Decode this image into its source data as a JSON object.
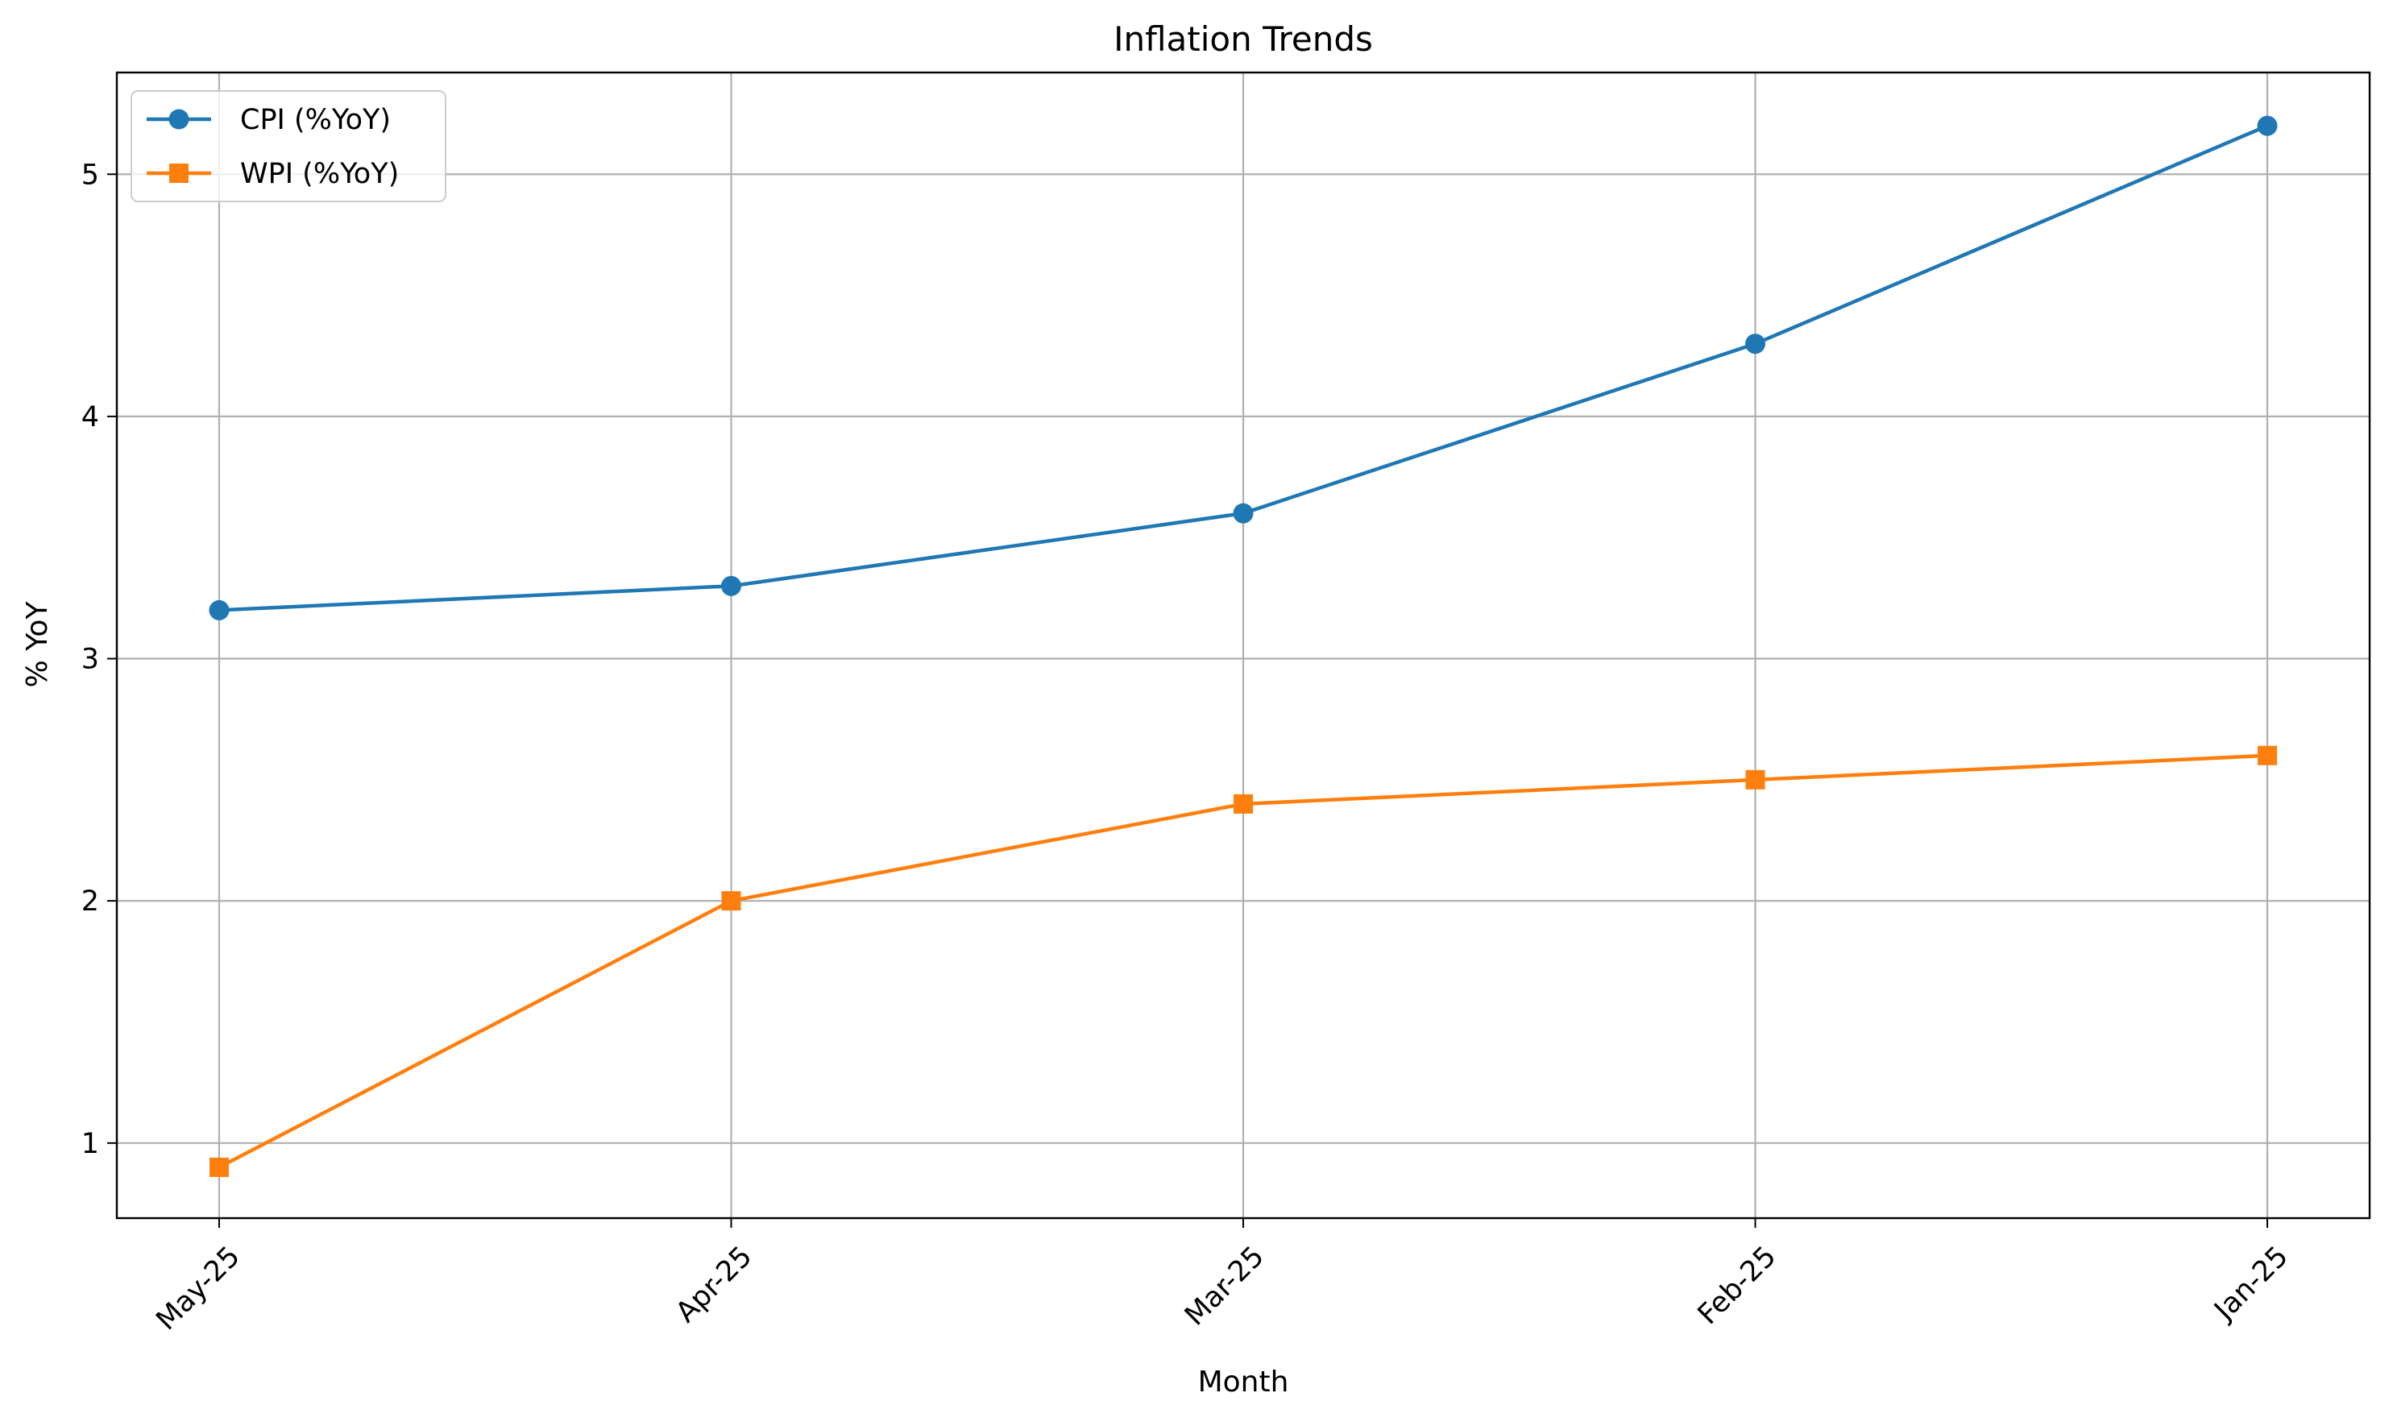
{
  "chart_data": {
    "type": "line",
    "title": "Inflation Trends",
    "xlabel": "Month",
    "ylabel": "% YoY",
    "categories": [
      "May-25",
      "Apr-25",
      "Mar-25",
      "Feb-25",
      "Jan-25"
    ],
    "series": [
      {
        "name": "CPI (%YoY)",
        "values": [
          3.2,
          3.3,
          3.6,
          4.3,
          5.2
        ],
        "color": "#1f77b4",
        "marker": "circle"
      },
      {
        "name": "WPI (%YoY)",
        "values": [
          0.9,
          2.0,
          2.4,
          2.5,
          2.6
        ],
        "color": "#ff7f0e",
        "marker": "square"
      }
    ],
    "ylim": [
      0.69,
      5.42
    ],
    "yticks": [
      "1",
      "2",
      "3",
      "4",
      "5"
    ],
    "grid": true,
    "legend_position": "top-left"
  }
}
